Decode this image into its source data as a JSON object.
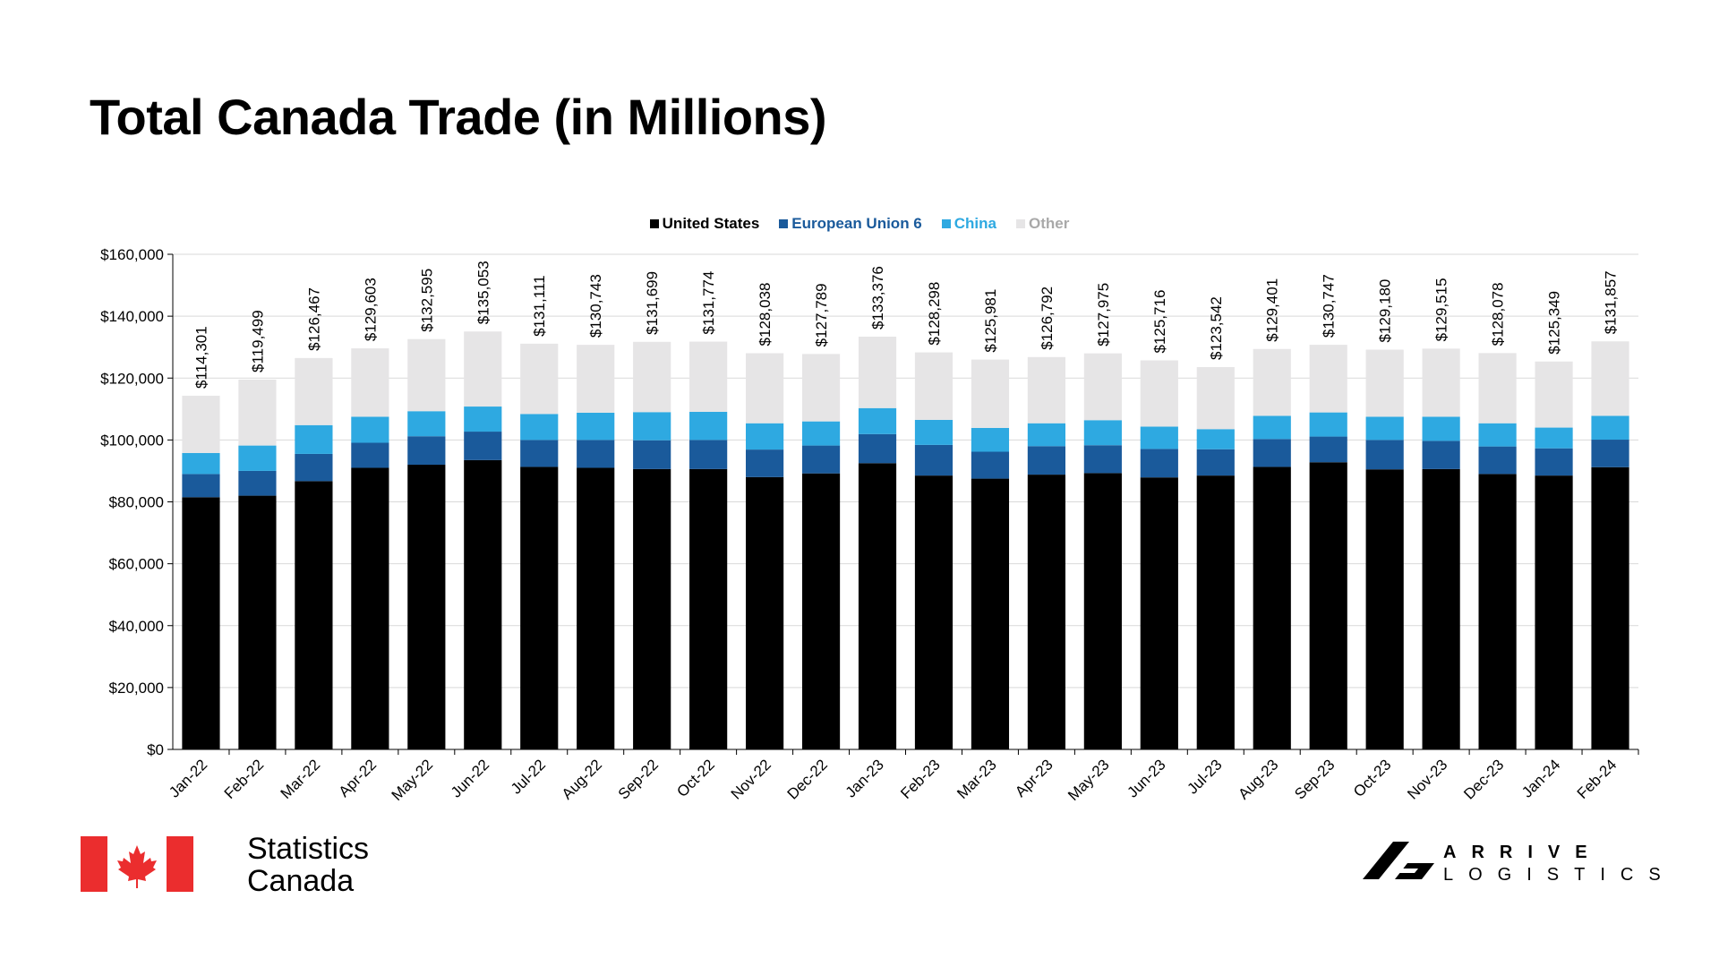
{
  "header": {
    "title": "Total Canada Trade (in Millions)"
  },
  "legend": [
    {
      "label": "United States",
      "color": "#000000"
    },
    {
      "label": "European Union 6",
      "color": "#1A5A9B"
    },
    {
      "label": "China",
      "color": "#2EA9E1"
    },
    {
      "label": "Other",
      "color": "#E6E5E6"
    }
  ],
  "chart_data": {
    "type": "bar",
    "stacked": true,
    "title": "Total Canada Trade (in Millions)",
    "xlabel": "",
    "ylabel": "",
    "ylim": [
      0,
      160000
    ],
    "yticks": [
      "$0",
      "$20,000",
      "$40,000",
      "$60,000",
      "$80,000",
      "$100,000",
      "$120,000",
      "$140,000",
      "$160,000"
    ],
    "categories": [
      "Jan-22",
      "Feb-22",
      "Mar-22",
      "Apr-22",
      "May-22",
      "Jun-22",
      "Jul-22",
      "Aug-22",
      "Sep-22",
      "Oct-22",
      "Nov-22",
      "Dec-22",
      "Jan-23",
      "Feb-23",
      "Mar-23",
      "Apr-23",
      "May-23",
      "Jun-23",
      "Jul-23",
      "Aug-23",
      "Sep-23",
      "Oct-23",
      "Nov-23",
      "Dec-23",
      "Jan-24",
      "Feb-24"
    ],
    "totals": [
      114301,
      119499,
      126467,
      129603,
      132595,
      135053,
      131111,
      130743,
      131699,
      131774,
      128038,
      127789,
      133376,
      128298,
      125981,
      126792,
      127975,
      125716,
      123542,
      129401,
      130747,
      129180,
      129515,
      128078,
      125349,
      131857
    ],
    "total_labels": [
      "$114,301",
      "$119,499",
      "$126,467",
      "$129,603",
      "$132,595",
      "$135,053",
      "$131,111",
      "$130,743",
      "$131,699",
      "$131,774",
      "$128,038",
      "$127,789",
      "$133,376",
      "$128,298",
      "$125,981",
      "$126,792",
      "$127,975",
      "$125,716",
      "$123,542",
      "$129,401",
      "$130,747",
      "$129,180",
      "$129,515",
      "$128,078",
      "$125,349",
      "$131,857"
    ],
    "series": [
      {
        "name": "United States",
        "color": "#000000",
        "values": [
          81500,
          82000,
          86700,
          91000,
          92000,
          93500,
          91300,
          91000,
          90600,
          90600,
          88000,
          89200,
          92500,
          88500,
          87500,
          88800,
          89300,
          87900,
          88500,
          91300,
          92800,
          90500,
          90600,
          89000,
          88500,
          91200
        ]
      },
      {
        "name": "European Union 6",
        "color": "#1A5A9B",
        "values": [
          7500,
          8000,
          8800,
          8100,
          9200,
          9200,
          8700,
          9000,
          9300,
          9400,
          8900,
          9000,
          9400,
          9900,
          8700,
          9200,
          9000,
          9200,
          8500,
          9000,
          8300,
          9500,
          9100,
          8900,
          8800,
          8900
        ]
      },
      {
        "name": "China",
        "color": "#2EA9E1",
        "values": [
          6800,
          8200,
          9300,
          8400,
          8100,
          8100,
          8400,
          8800,
          9100,
          9100,
          8500,
          7800,
          8400,
          8100,
          7700,
          7400,
          8100,
          7200,
          6500,
          7500,
          7800,
          7500,
          7800,
          7500,
          6700,
          7700
        ]
      },
      {
        "name": "Other",
        "color": "#E6E5E6",
        "values": [
          18501,
          21299,
          21667,
          22103,
          23295,
          24253,
          22711,
          21943,
          22699,
          22674,
          22638,
          21789,
          23076,
          21798,
          22081,
          21392,
          21575,
          21416,
          20042,
          21601,
          21847,
          21680,
          22015,
          22678,
          21349,
          24057
        ]
      }
    ]
  },
  "footer": {
    "statcan_line1": "Statistics",
    "statcan_line2": "Canada",
    "brand_line1": "ARRIVE",
    "brand_line2": "LOGISTICS"
  }
}
